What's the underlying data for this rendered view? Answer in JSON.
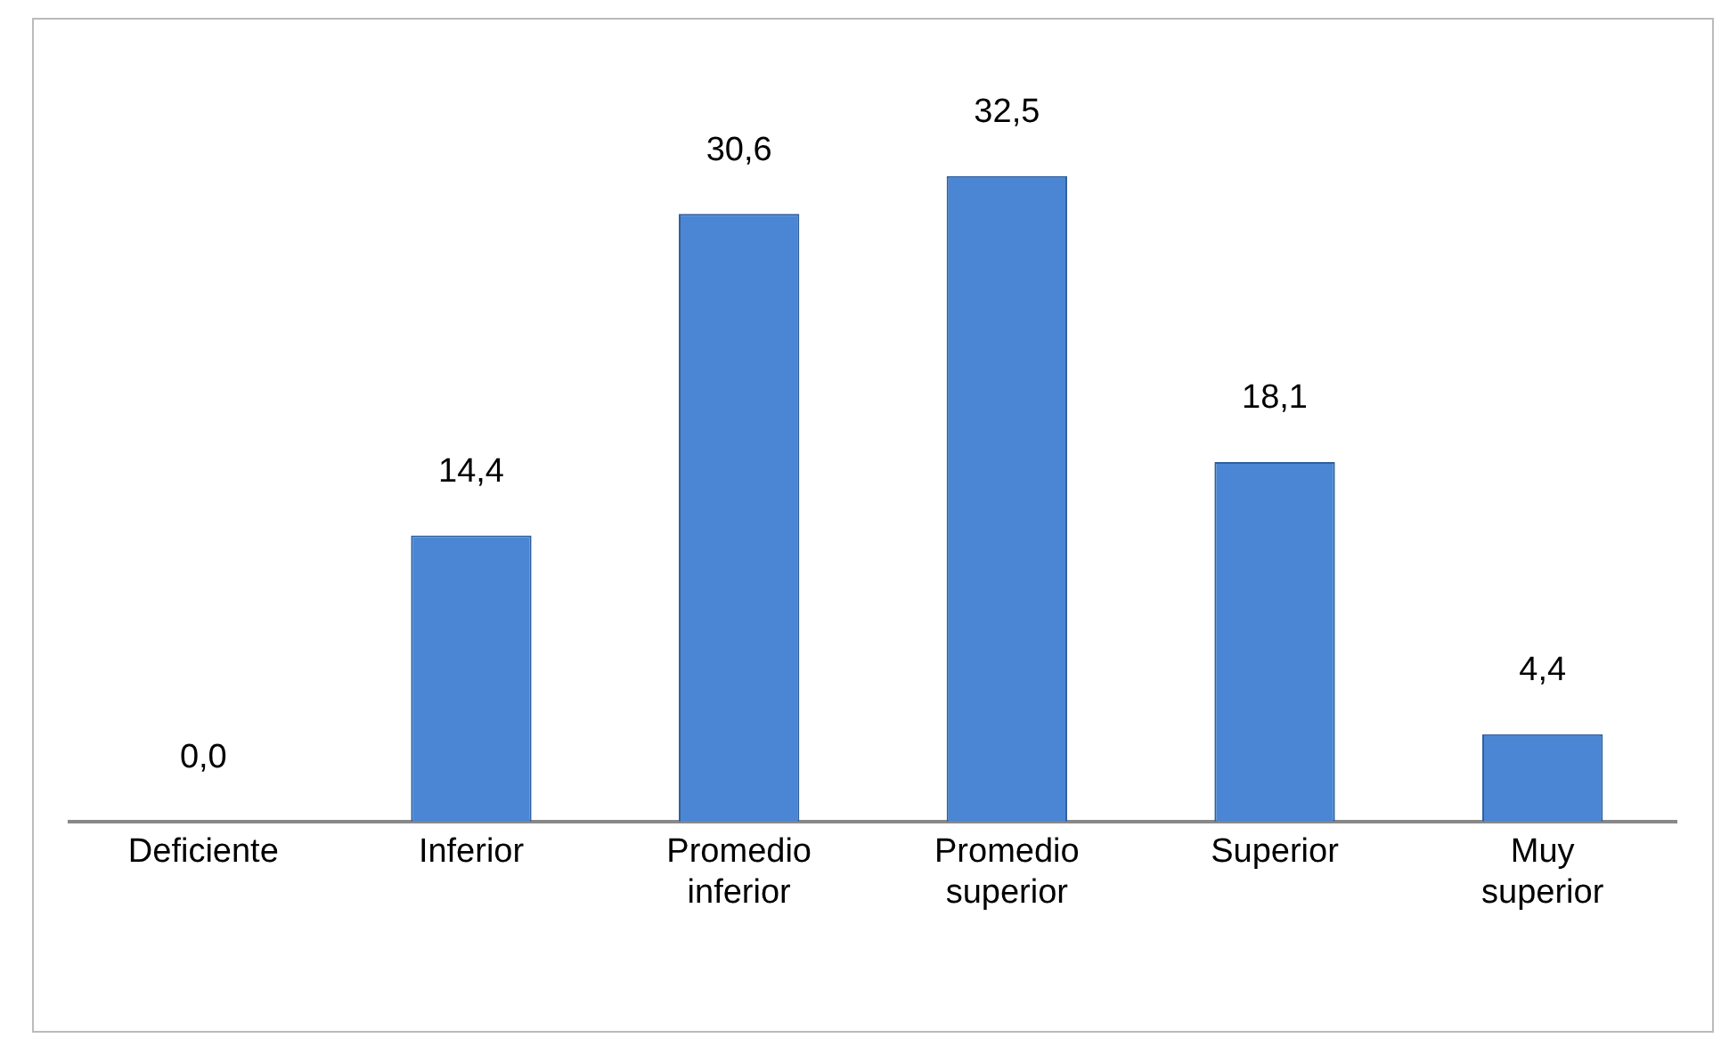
{
  "chart_data": {
    "type": "bar",
    "categories": [
      "Deficiente",
      "Inferior",
      "Promedio inferior",
      "Promedio superior",
      "Superior",
      "Muy superior"
    ],
    "values": [
      0.0,
      14.4,
      30.6,
      32.5,
      18.1,
      4.4
    ],
    "value_labels": [
      "0,0",
      "14,4",
      "30,6",
      "32,5",
      "18,1",
      "4,4"
    ],
    "color": "#4a86d4",
    "grid": false,
    "legend": false
  }
}
